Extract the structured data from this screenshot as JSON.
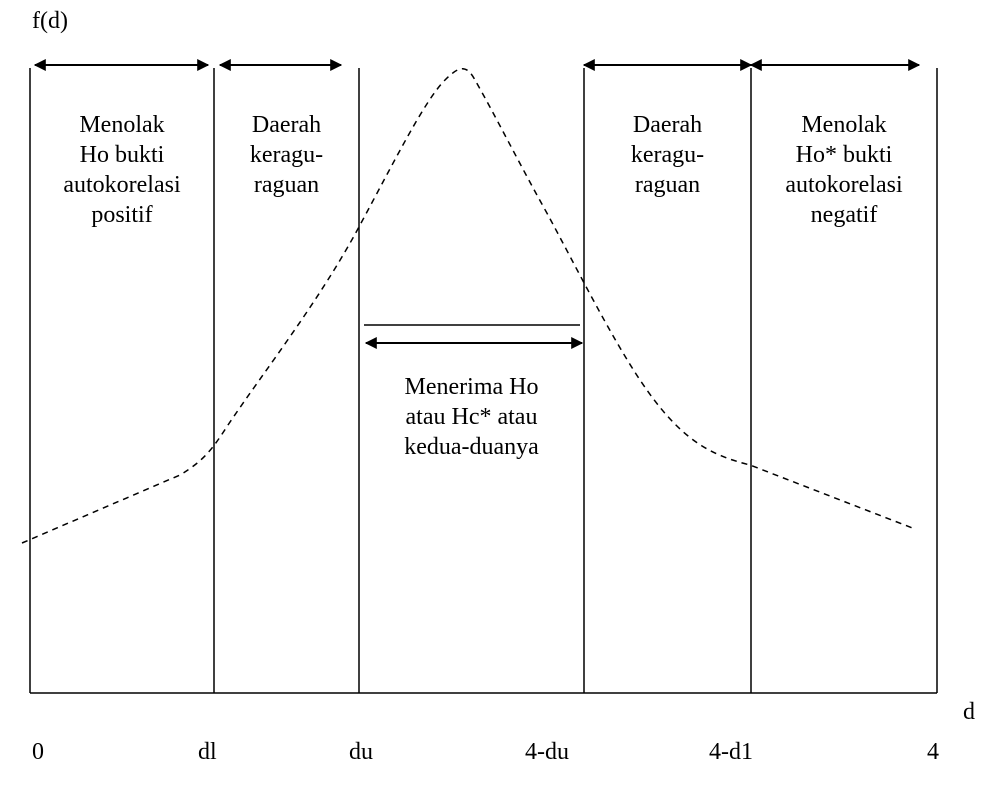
{
  "y_axis_label": "f(d)",
  "x_axis_label": "d",
  "tick_labels": [
    "0",
    "dl",
    "du",
    "4-du",
    "4-d1",
    "4"
  ],
  "regions": [
    {
      "lines": [
        "Menolak",
        "Ho bukti",
        "autokorelasi",
        "positif"
      ]
    },
    {
      "lines": [
        "Daerah",
        "keragu-",
        "raguan"
      ]
    },
    {
      "lines": [
        "Menerima Ho",
        "atau Hc* atau",
        "kedua-duanya"
      ]
    },
    {
      "lines": [
        "Daerah",
        "keragu-",
        "raguan"
      ]
    },
    {
      "lines": [
        "Menolak",
        "Ho* bukti",
        "autokorelasi",
        "negatif"
      ]
    }
  ]
}
